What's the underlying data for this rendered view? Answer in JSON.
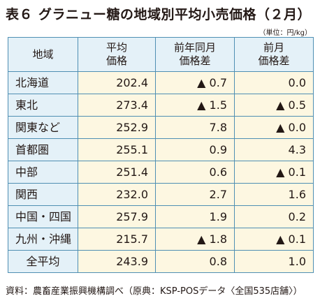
{
  "title": {
    "label": "表６",
    "text": "グラニュー糖の地域別平均小売価格（２月）"
  },
  "unit": "（単位：円/kg）",
  "table": {
    "headers": [
      [
        "地域"
      ],
      [
        "平均",
        "価格"
      ],
      [
        "前年同月",
        "価格差"
      ],
      [
        "前月",
        "価格差"
      ]
    ],
    "rows": [
      {
        "region": "北海道",
        "price": "202.4",
        "yoy": "▲ 0.7",
        "mom": "0.0"
      },
      {
        "region": "東北",
        "price": "273.4",
        "yoy": "▲ 1.5",
        "mom": "▲ 0.5"
      },
      {
        "region": "関東など",
        "price": "252.9",
        "yoy": "7.8",
        "mom": "▲ 0.0"
      },
      {
        "region": "首都圏",
        "price": "255.1",
        "yoy": "0.9",
        "mom": "4.3"
      },
      {
        "region": "中部",
        "price": "251.4",
        "yoy": "0.6",
        "mom": "▲ 0.1"
      },
      {
        "region": "関西",
        "price": "232.0",
        "yoy": "2.7",
        "mom": "1.6"
      },
      {
        "region": "中国・四国",
        "price": "257.9",
        "yoy": "1.9",
        "mom": "0.2"
      },
      {
        "region": "九州・沖縄",
        "price": "215.7",
        "yoy": "▲ 1.8",
        "mom": "▲ 0.1"
      },
      {
        "region": "全平均",
        "price": "243.9",
        "yoy": "0.8",
        "mom": "1.0"
      }
    ]
  },
  "footer": "資料：農畜産業振興機構調べ（原典：KSP-POSデータ〈全国535店舗〉）",
  "colors": {
    "border": "#4f8fb3",
    "header_bg": "#e4f1f8",
    "value_bg": "#fdf7e1"
  }
}
